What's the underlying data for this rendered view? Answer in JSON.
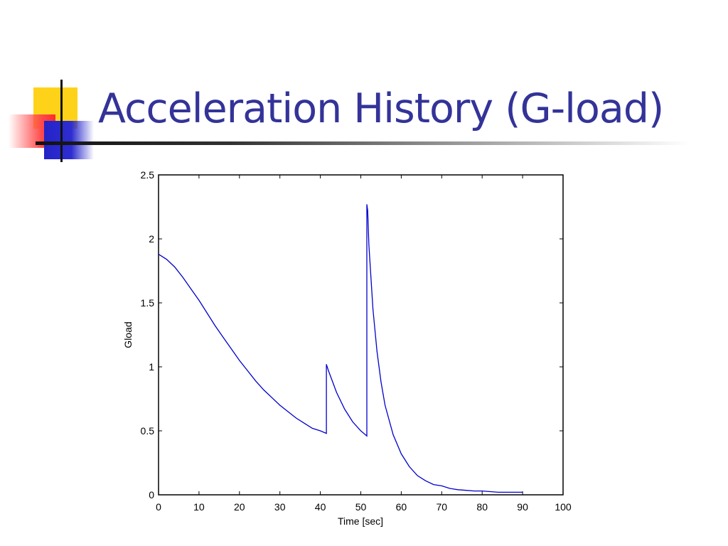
{
  "slide": {
    "title": "Acceleration History (G-load)"
  },
  "colors": {
    "title": "#333399",
    "series": "#0000cc"
  },
  "chart_data": {
    "type": "line",
    "title": "",
    "xlabel": "Time [sec]",
    "ylabel": "Gload",
    "xlim": [
      0,
      100
    ],
    "ylim": [
      0,
      2.5
    ],
    "xticks": [
      0,
      10,
      20,
      30,
      40,
      50,
      60,
      70,
      80,
      90,
      100
    ],
    "yticks": [
      0,
      0.5,
      1,
      1.5,
      2,
      2.5
    ],
    "ytick_labels": [
      "0",
      "0.5",
      "1",
      "1.5",
      "2",
      "2.5"
    ],
    "grid": false,
    "series": [
      {
        "x": [
          0,
          2,
          4,
          6,
          8,
          10,
          12,
          14,
          16,
          18,
          20,
          22,
          24,
          26,
          28,
          30,
          32,
          34,
          36,
          38,
          40,
          41.5,
          41.5,
          42,
          44,
          46,
          48,
          50,
          51.5,
          51.5,
          51.7,
          52,
          53,
          54,
          55,
          56,
          58,
          60,
          62,
          64,
          66,
          68,
          70,
          72,
          74,
          76,
          78,
          80,
          82,
          84,
          86,
          88,
          90
        ],
        "y": [
          1.88,
          1.84,
          1.78,
          1.7,
          1.61,
          1.52,
          1.42,
          1.32,
          1.23,
          1.14,
          1.05,
          0.97,
          0.89,
          0.82,
          0.76,
          0.7,
          0.65,
          0.6,
          0.56,
          0.52,
          0.5,
          0.48,
          1.02,
          0.97,
          0.8,
          0.67,
          0.57,
          0.5,
          0.46,
          2.27,
          2.22,
          1.95,
          1.45,
          1.12,
          0.88,
          0.7,
          0.47,
          0.32,
          0.22,
          0.15,
          0.11,
          0.08,
          0.07,
          0.05,
          0.04,
          0.035,
          0.03,
          0.03,
          0.025,
          0.02,
          0.02,
          0.02,
          0.02
        ]
      }
    ]
  }
}
